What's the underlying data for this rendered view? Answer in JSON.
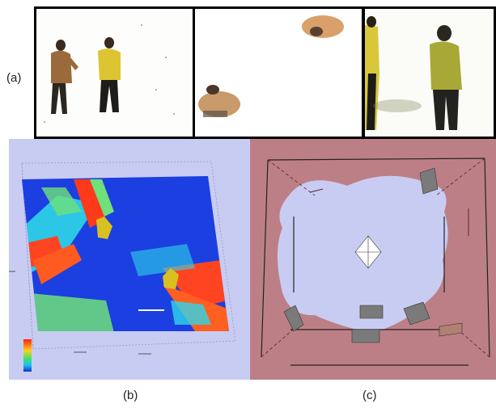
{
  "labels": {
    "a": "(a)",
    "b": "(b)",
    "c": "(c)"
  },
  "colors": {
    "panel_b_bg": "#c8ccf2",
    "panel_c_bg": "#bd7f86",
    "panel_c_free": "#c9ccf2",
    "heatmap_blue": "#1a3de0",
    "heatmap_cyan": "#2fd6e8",
    "heatmap_green": "#6fe07a",
    "heatmap_red": "#ff4020",
    "person_yellow": "#d8c020",
    "frame_black": "#000000"
  },
  "colorbar": {
    "ticks": [
      "",
      "",
      ""
    ]
  }
}
